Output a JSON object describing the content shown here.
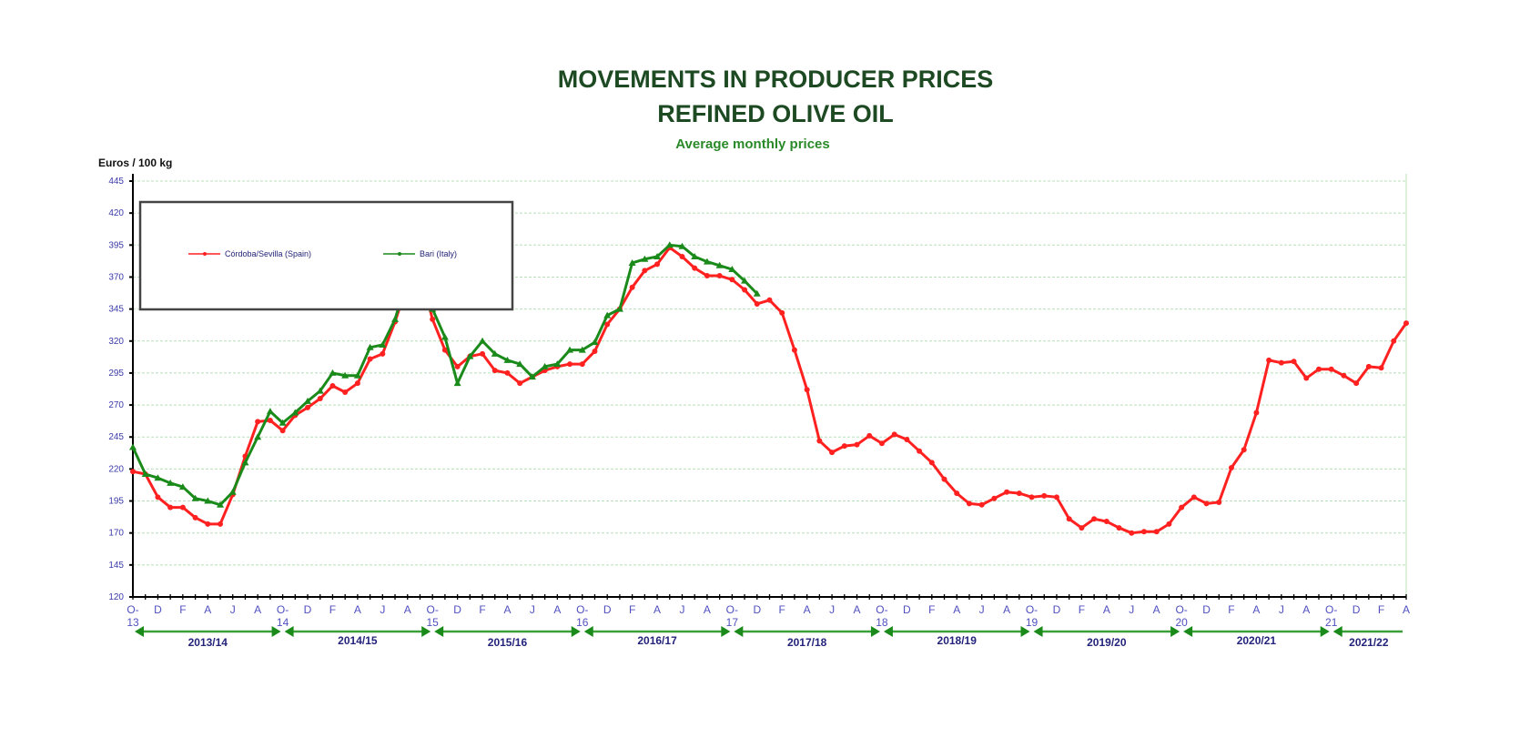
{
  "chart_data": {
    "type": "line",
    "title": "MOVEMENTS IN PRODUCER PRICES",
    "title_line2": "REFINED OLIVE OIL",
    "subtitle": "Average monthly prices",
    "ylabel": "Euros  / 100 kg",
    "xlabel": "",
    "ylim": [
      120,
      445
    ],
    "yticks": [
      120,
      145,
      170,
      195,
      220,
      245,
      270,
      295,
      320,
      345,
      370,
      395,
      420,
      445
    ],
    "grid": true,
    "legend_position": "top-left",
    "x_start": "2013-10",
    "x_end": "2022-04",
    "month_letters": [
      "O-",
      "D",
      "F",
      "A",
      "J",
      "A"
    ],
    "october_years": [
      "13",
      "14",
      "15",
      "16",
      "17",
      "18",
      "19",
      "20",
      "21"
    ],
    "seasons": [
      "2013/14",
      "2014/15",
      "2015/16",
      "2016/17",
      "2017/18",
      "2018/19",
      "2019/20",
      "2020/21",
      "2021/22"
    ],
    "series": [
      {
        "name": "Córdoba/Sevilla (Spain)",
        "color": "#ff2020",
        "values": [
          218,
          216,
          198,
          190,
          190,
          182,
          177,
          177,
          200,
          230,
          257,
          258,
          250,
          262,
          268,
          275,
          285,
          280,
          287,
          306,
          310,
          335,
          365,
          375,
          337,
          313,
          300,
          308,
          310,
          297,
          295,
          287,
          292,
          297,
          300,
          302,
          302,
          312,
          333,
          345,
          362,
          375,
          380,
          393,
          386,
          377,
          371,
          371,
          368,
          360,
          349,
          352,
          342,
          313,
          282,
          242,
          233,
          238,
          239,
          246,
          240,
          247,
          243,
          234,
          225,
          212,
          201,
          193,
          192,
          197,
          202,
          201,
          198,
          199,
          198,
          181,
          174,
          181,
          179,
          174,
          170,
          171,
          171,
          177,
          190,
          198,
          193,
          194,
          221,
          235,
          264,
          305,
          303,
          304,
          291,
          298,
          298,
          293,
          287,
          300,
          299,
          320,
          334
        ]
      },
      {
        "name": "Bari (Italy)",
        "color": "#1a8a1a",
        "values": [
          237,
          216,
          213,
          209,
          206,
          197,
          195,
          192,
          202,
          225,
          245,
          265,
          256,
          264,
          273,
          281,
          295,
          293,
          293,
          315,
          317,
          337,
          370,
          380,
          345,
          323,
          287,
          308,
          320,
          310,
          305,
          302,
          292,
          300,
          302,
          313,
          313,
          319,
          340,
          345,
          381,
          384,
          386,
          395,
          394,
          386,
          382,
          379,
          376,
          367,
          357
        ]
      }
    ]
  }
}
